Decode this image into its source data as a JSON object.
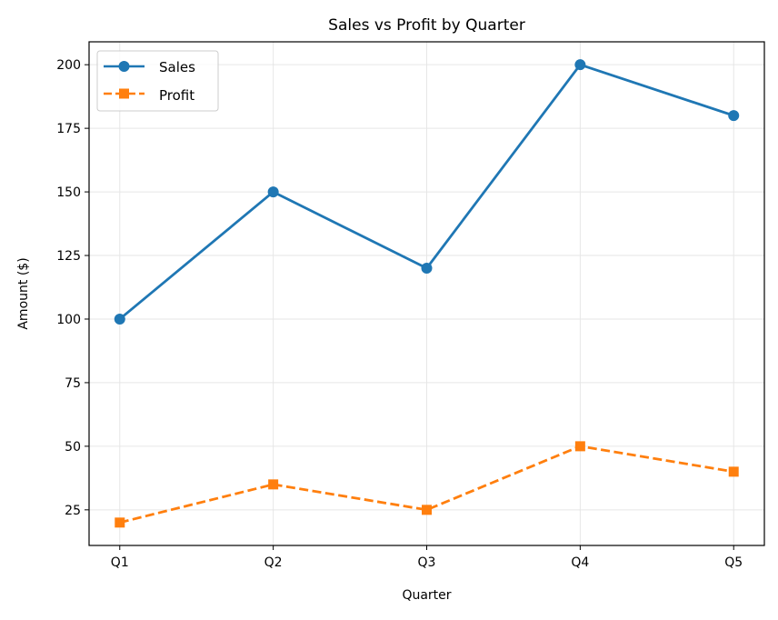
{
  "chart_data": {
    "type": "line",
    "title": "Sales vs Profit by Quarter",
    "xlabel": "Quarter",
    "ylabel": "Amount ($)",
    "categories": [
      "Q1",
      "Q2",
      "Q3",
      "Q4",
      "Q5"
    ],
    "series": [
      {
        "name": "Sales",
        "values": [
          100,
          150,
          120,
          200,
          180
        ],
        "color": "#1f77b4",
        "marker": "circle",
        "linestyle": "solid"
      },
      {
        "name": "Profit",
        "values": [
          20,
          35,
          25,
          50,
          40
        ],
        "color": "#ff7f0e",
        "marker": "square",
        "linestyle": "dashed"
      }
    ],
    "ylim": [
      11,
      209
    ],
    "yticks": [
      25,
      50,
      75,
      100,
      125,
      150,
      175,
      200
    ],
    "grid": true,
    "legend": "upper-left"
  }
}
